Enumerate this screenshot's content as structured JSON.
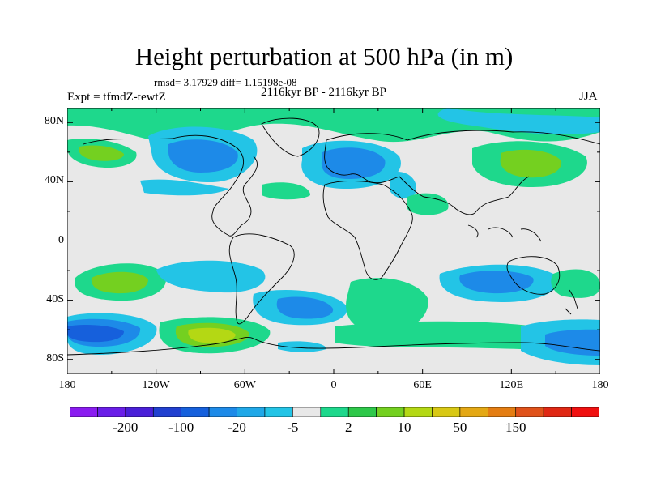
{
  "title": "Height perturbation at 500 hPa (in m)",
  "stats_line": "rmsd= 3.17929 diff= 1.15198e-08",
  "left_label": "Expt = tfmdZ-tewtZ",
  "center_label": "2116kyr BP - 2116kyr BP",
  "right_label": "JJA",
  "lat_labels": [
    "80N",
    "40N",
    "0",
    "40S",
    "80S"
  ],
  "lat_values": [
    80,
    40,
    0,
    -40,
    -80
  ],
  "lon_labels": [
    "180",
    "120W",
    "60W",
    "0",
    "60E",
    "120E",
    "180"
  ],
  "lon_values": [
    -180,
    -120,
    -60,
    0,
    60,
    120,
    180
  ],
  "colorbar": {
    "colors": [
      "#8a1cf0",
      "#6a1ee8",
      "#4a1fd8",
      "#2140d0",
      "#1660dc",
      "#1d8ae8",
      "#20a8e8",
      "#23c4e6",
      "#e8e8e8",
      "#1ed88c",
      "#2ec84a",
      "#74d020",
      "#b4d814",
      "#d8c814",
      "#e4a814",
      "#e47d12",
      "#e0521a",
      "#e02814",
      "#f01010"
    ],
    "labels": [
      "-200",
      "-100",
      "-20",
      "-5",
      "2",
      "10",
      "50",
      "150"
    ],
    "label_box_index": [
      1,
      3,
      5,
      7,
      9,
      11,
      13,
      15
    ]
  },
  "levels": {
    "neutral": "#e8e8e8",
    "light_blue": "#23c4e6",
    "mid_blue": "#1d8ae8",
    "dark_blue": "#1660dc",
    "light_green": "#1ed88c",
    "green": "#2ec84a",
    "yellow_green": "#74d020",
    "yellow": "#b4d814"
  }
}
